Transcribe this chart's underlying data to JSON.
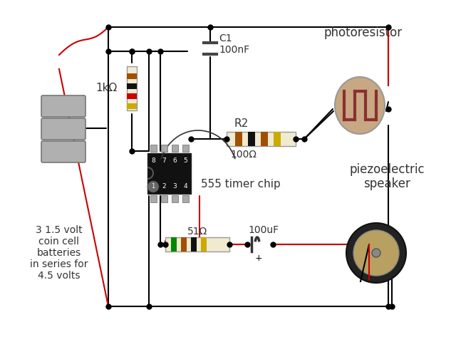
{
  "bg_color": "#ffffff",
  "wire_black": "#000000",
  "wire_red": "#cc0000",
  "text_color": "#333333",
  "chip_bg": "#111111",
  "pin_color": "#aaaaaa",
  "resistor_body": "#f0ead0",
  "battery_color": "#aaaaaa",
  "photoresistor_body": "#c8a882",
  "photoresistor_trace": "#8b3030",
  "speaker_outer": "#222222",
  "speaker_inner": "#b8a060",
  "labels": {
    "r1": "1kΩ",
    "c1_name": "C1",
    "c1_val": "100nF",
    "r2_name": "R2",
    "r2_val": "100Ω",
    "r3": "51Ω",
    "c2_val": "100uF",
    "chip": "555 timer chip",
    "battery": "3 1.5 volt\ncoin cell\nbatteries\nin series for\n4.5 volts",
    "photoresistor": "photoresistor",
    "speaker": "piezoelectric\nspeaker"
  },
  "figsize": [
    6.4,
    4.8
  ],
  "dpi": 100
}
